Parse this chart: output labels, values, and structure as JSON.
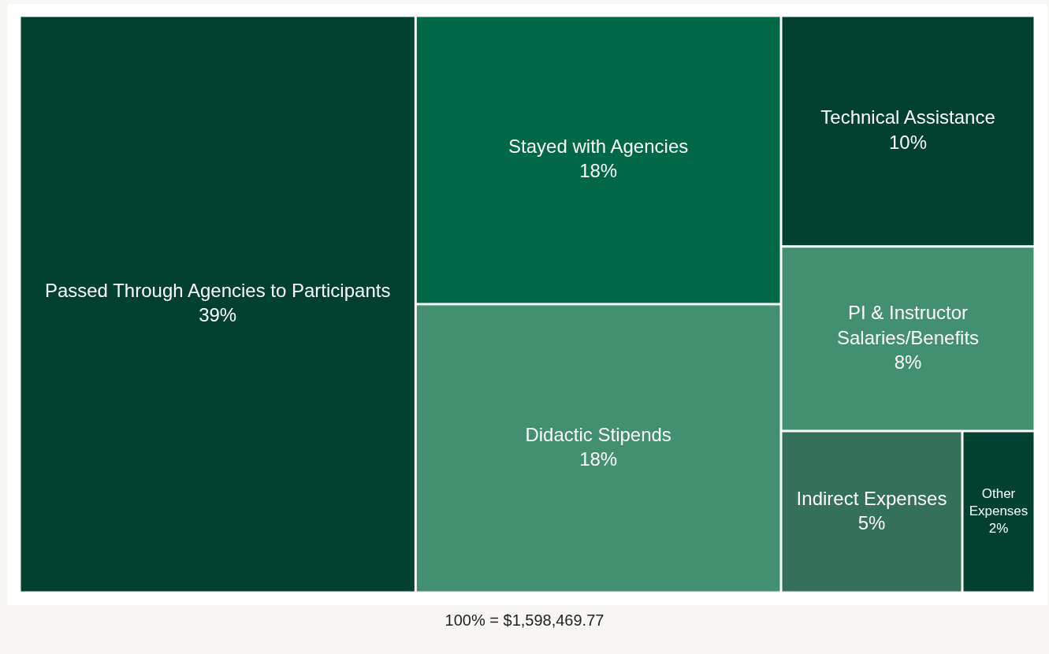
{
  "chart_data": {
    "type": "other",
    "categories": [
      "Passed Through Agencies to Participants",
      "Stayed with Agencies",
      "Didactic Stipends",
      "Technical Assistance",
      "PI & Instructor Salaries/Benefits",
      "Indirect Expenses",
      "Other Expenses"
    ],
    "values": [
      39,
      18,
      18,
      10,
      8,
      5,
      2
    ],
    "value_labels": [
      "39%",
      "18%",
      "18%",
      "10%",
      "8%",
      "5%",
      "2%"
    ],
    "colors": [
      "#024030",
      "#006847",
      "#429070",
      "#024030",
      "#429070",
      "#35705a",
      "#024030"
    ],
    "annotations": [
      "100% = $1,598,469.77"
    ]
  }
}
